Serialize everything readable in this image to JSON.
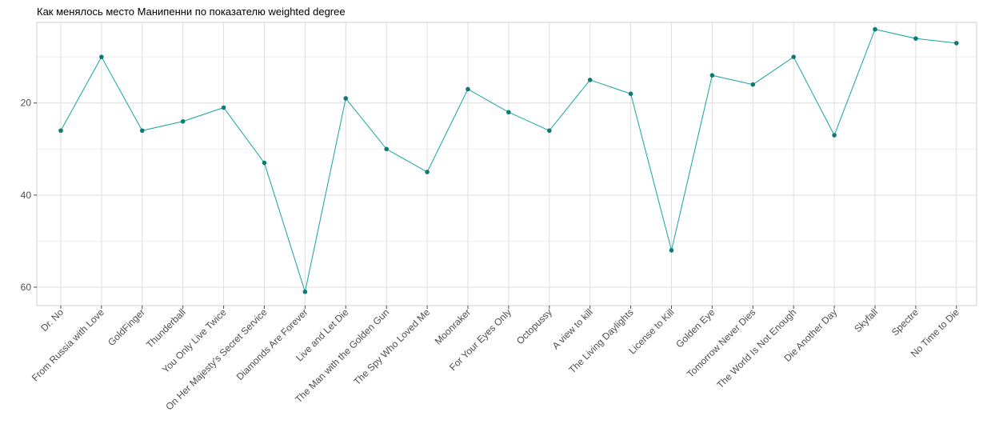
{
  "chart_data": {
    "type": "line",
    "title": "Как менялось место Манипенни по показателю weighted degree",
    "xlabel": "",
    "ylabel": "",
    "y_reversed": true,
    "ylim": [
      2.5,
      64
    ],
    "y_ticks": [
      20,
      40,
      60
    ],
    "y_minor_ticks": [
      10,
      30,
      50
    ],
    "grid": true,
    "legend": "none",
    "colors": {
      "line": "#17a2a2",
      "point": "#0b7b73"
    },
    "categories": [
      "Dr. No",
      "From Russia with Love",
      "GoldFinger",
      "Thunderball",
      "You Only Live Twice",
      "On Her Majesty's Secret Service",
      "Diamonds Are Forever",
      "Live and Let Die",
      "The Man with the Golden Gun",
      "The Spy Who Loved Me",
      "Moonraker",
      "For Your Eyes Only",
      "Octopussy",
      "A view to kill",
      "The Living Daylights",
      "License to Kill",
      "Golden Eye",
      "Tomorrow Never Dies",
      "The World Is Not Enough",
      "Die Another Day",
      "Skyfall",
      "Spectre",
      "No Time to Die"
    ],
    "values": [
      26,
      10,
      26,
      24,
      21,
      33,
      61,
      19,
      30,
      35,
      17,
      22,
      26,
      15,
      18,
      52,
      14,
      16,
      10,
      27,
      4,
      6,
      7
    ]
  }
}
